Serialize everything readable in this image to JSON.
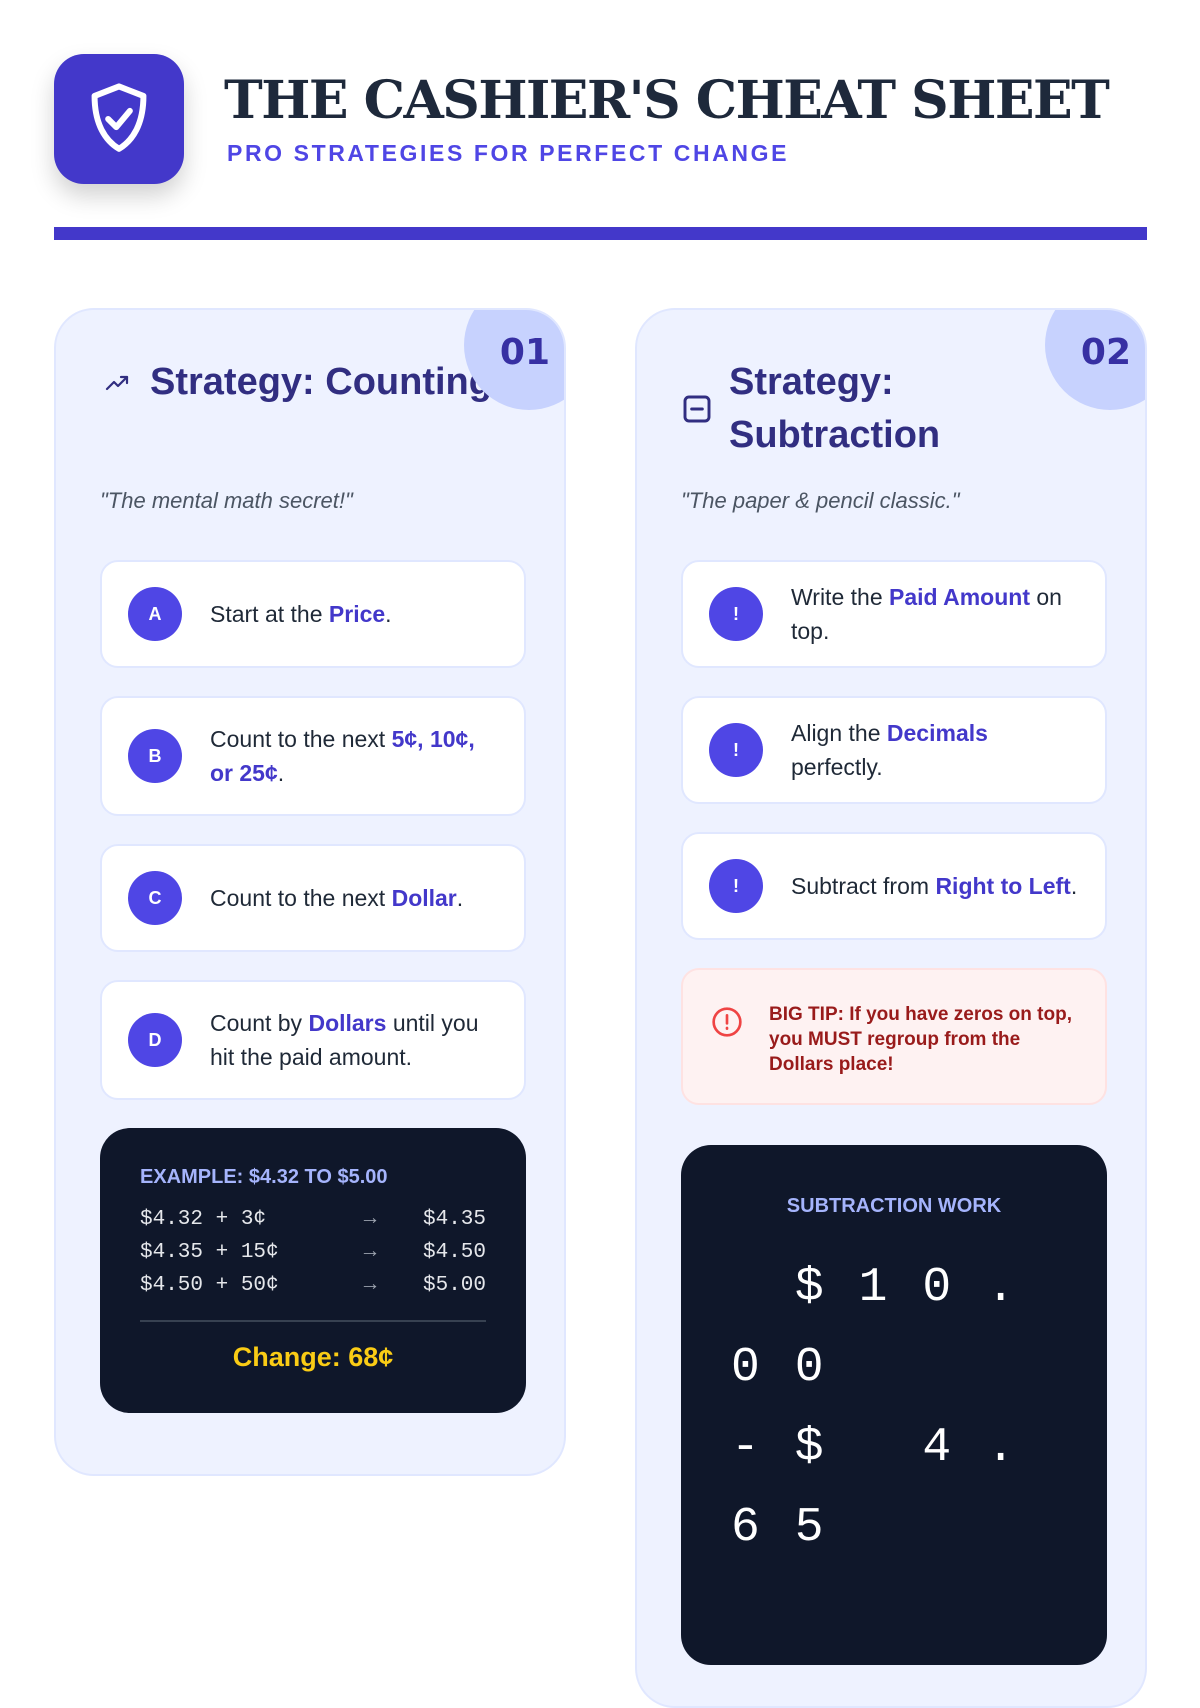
{
  "header": {
    "title": "THE CASHIER'S CHEAT SHEET",
    "subtitle": "PRO STRATEGIES FOR PERFECT CHANGE",
    "logo_icon": "shield-check-icon",
    "accent": "#4338ca"
  },
  "strategies": [
    {
      "number": "01",
      "icon": "trending-up-icon",
      "title": "Strategy: Counting Up",
      "quote": "\"The mental math secret!\"",
      "steps": [
        {
          "badge": "A",
          "before": "Start at the ",
          "highlight": "Price",
          "after": "."
        },
        {
          "badge": "B",
          "before": "Count to the next ",
          "highlight": "5¢, 10¢, or 25¢",
          "after": "."
        },
        {
          "badge": "C",
          "before": "Count to the next ",
          "highlight": "Dollar",
          "after": "."
        },
        {
          "badge": "D",
          "before": "Count by ",
          "highlight": "Dollars",
          "after": " until you hit the paid amount."
        }
      ],
      "example": {
        "heading": "EXAMPLE: $4.32 TO $5.00",
        "rows": [
          {
            "calc": "$4.32 + 3¢",
            "arrow": "→",
            "result": "$4.35"
          },
          {
            "calc": "$4.35 + 15¢",
            "arrow": "→",
            "result": "$4.50"
          },
          {
            "calc": "$4.50 + 50¢",
            "arrow": "→",
            "result": "$5.00"
          }
        ],
        "change": "Change: 68¢"
      }
    },
    {
      "number": "02",
      "icon": "minus-square-icon",
      "title": "Strategy: Subtraction",
      "quote": "\"The paper & pencil classic.\"",
      "steps": [
        {
          "badge": "!",
          "before": "Write the ",
          "highlight": "Paid Amount",
          "after": " on top."
        },
        {
          "badge": "!",
          "before": "Align the ",
          "highlight": "Decimals",
          "after": " perfectly."
        },
        {
          "badge": "!",
          "before": "Subtract from ",
          "highlight": "Right to Left",
          "after": "."
        }
      ],
      "tip": {
        "icon": "alert-circle-icon",
        "text": "BIG TIP: If you have zeros on top, you MUST regroup from the Dollars place!"
      },
      "work": {
        "heading": "SUBTRACTION WORK",
        "line1": " $10.00",
        "line2": "-$ 4.65"
      }
    }
  ]
}
